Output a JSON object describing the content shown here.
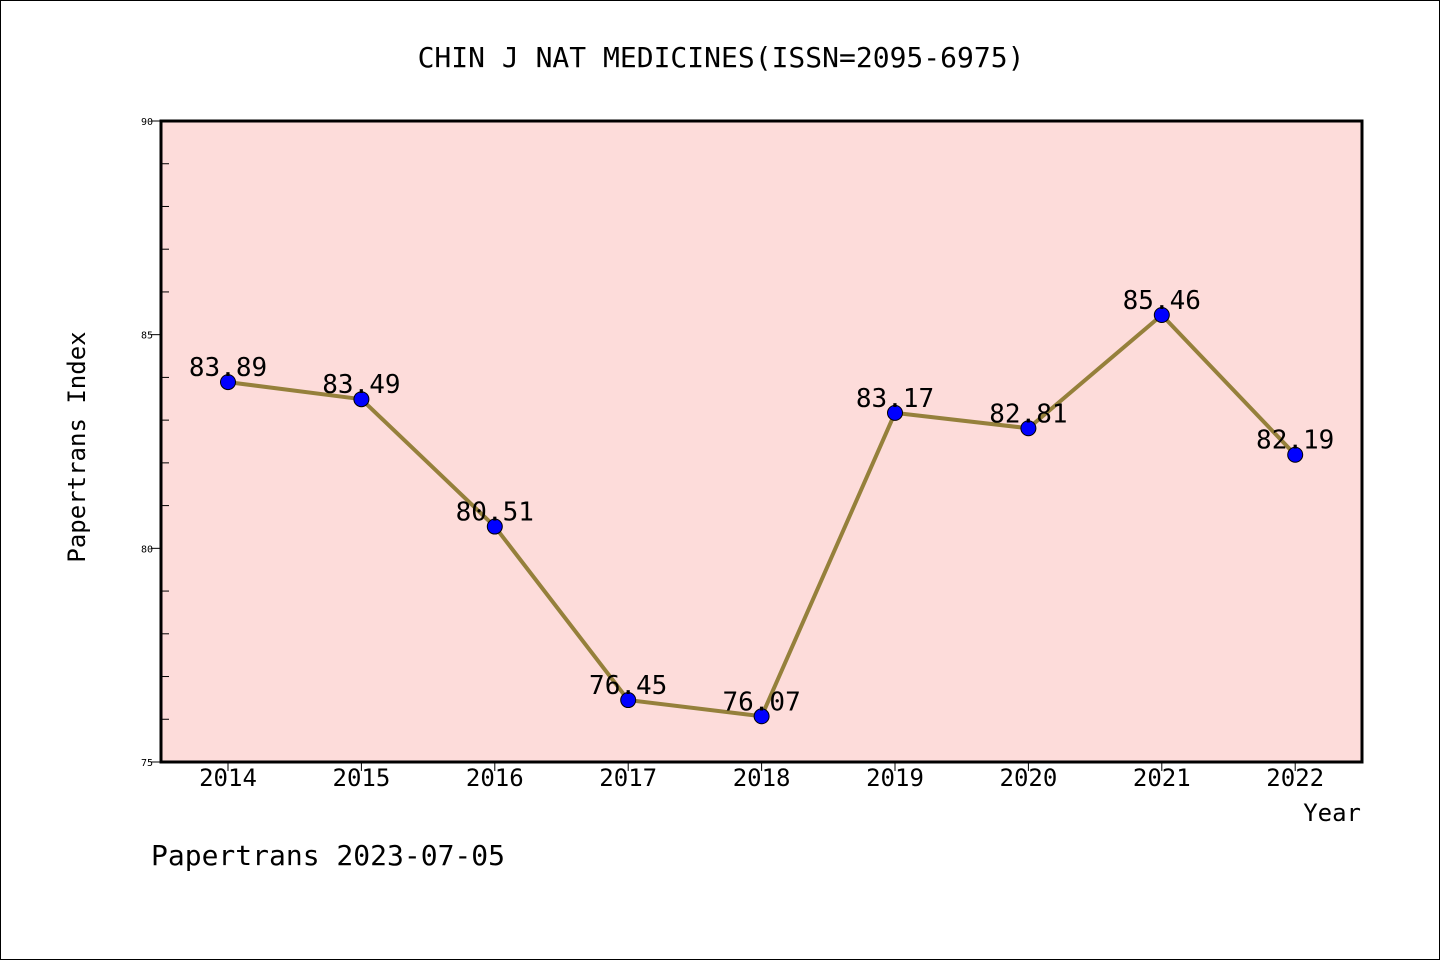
{
  "chart_data": {
    "type": "line",
    "title": "CHIN J NAT MEDICINES(ISSN=2095-6975)",
    "xlabel": "Year",
    "ylabel": "Papertrans Index",
    "categories": [
      "2014",
      "2015",
      "2016",
      "2017",
      "2018",
      "2019",
      "2020",
      "2021",
      "2022"
    ],
    "series": [
      {
        "values": [
          83.89,
          83.49,
          80.51,
          76.45,
          76.07,
          83.17,
          82.81,
          85.46,
          82.19
        ],
        "labels": [
          "83.89",
          "83.49",
          "80.51",
          "76.45",
          "76.07",
          "83.17",
          "82.81",
          "85.46",
          "82.19"
        ]
      }
    ],
    "ylim": [
      75,
      90
    ],
    "yticks": [
      "75",
      "80",
      "85",
      "90"
    ],
    "grid": false,
    "legend": "none"
  },
  "footer": "Papertrans 2023-07-05",
  "colors": {
    "plot_background": "#fddcda",
    "line": "#95803b",
    "marker": "#0000ff",
    "axis": "#000000"
  }
}
